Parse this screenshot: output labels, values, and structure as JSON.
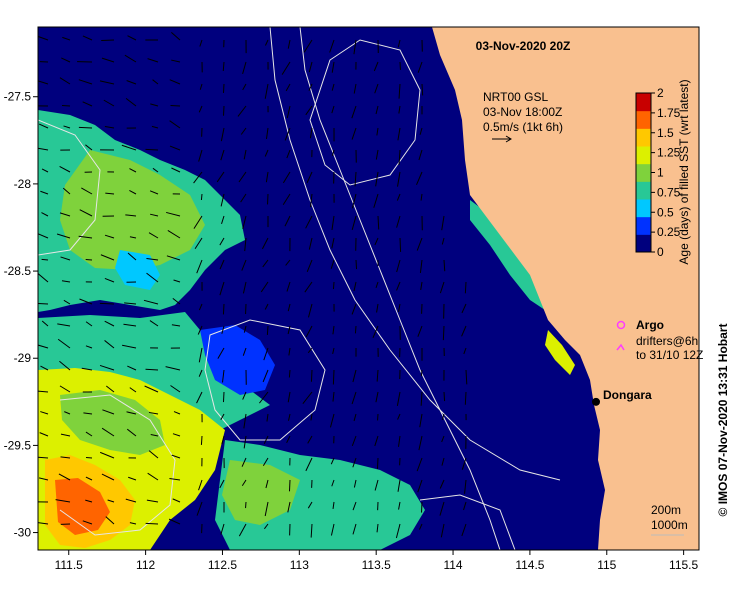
{
  "chart_data": {
    "type": "heatmap",
    "title": "03-Nov-2020 20Z",
    "x_ticks": [
      "111.5",
      "112",
      "112.5",
      "113",
      "113.5",
      "114",
      "114.5",
      "115",
      "115.5"
    ],
    "y_ticks": [
      "-27.5",
      "-28",
      "-28.5",
      "-29",
      "-29.5",
      "-30"
    ],
    "x_range": [
      111.3,
      115.6
    ],
    "y_range": [
      -30.1,
      -27.1
    ],
    "colorbar": {
      "label": "Age (days) of filled SST (wrt latest)",
      "ticks": [
        "2",
        "1.75",
        "1.5",
        "1.25",
        "1",
        "0.75",
        "0.5",
        "0.25",
        "0"
      ],
      "range": [
        0,
        2
      ]
    },
    "current_info": {
      "line1": "NRT00 GSL",
      "line2": "03-Nov 18:00Z",
      "line3": "0.5m/s (1kt 6h)"
    },
    "legend": {
      "argo_label": "Argo",
      "drifter_line1": "drifters@6h",
      "drifter_line2": "to 31/10 12Z"
    },
    "place": {
      "name": "Dongara",
      "lon": 114.93,
      "lat": -29.25
    },
    "depth_contours": {
      "line1": "200m",
      "line2": "1000m"
    },
    "credit": "© IMOS 07-Nov-2020 13:31 Hobart"
  },
  "colors": {
    "land": "#f9c08f",
    "ocean_base": "#00007e",
    "contour": "#e6e6e6",
    "argo": "#ff3cff",
    "colormap": [
      "#00007e",
      "#0032ff",
      "#00c8ff",
      "#28c896",
      "#7fd23c",
      "#dcf000",
      "#ffc800",
      "#ff6400",
      "#c80000"
    ]
  }
}
